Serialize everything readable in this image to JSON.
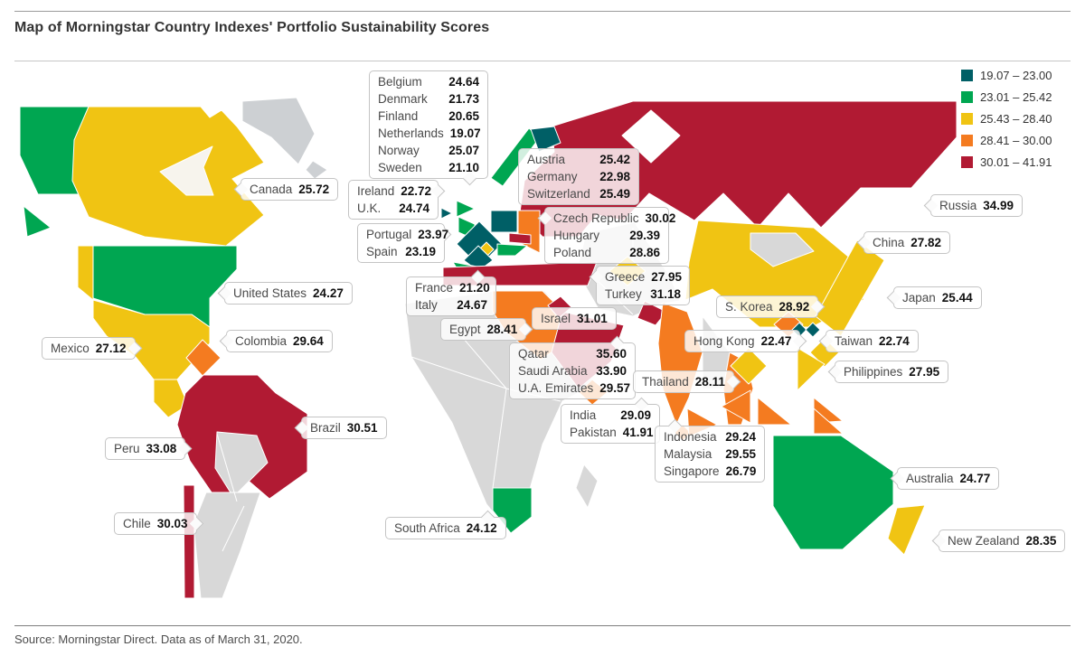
{
  "title": "Map of Morningstar Country Indexes' Portfolio Sustainability Scores",
  "source": "Source: Morningstar Direct. Data as of March 31, 2020.",
  "colors": {
    "teal": "#005F66",
    "green": "#00A651",
    "yellow": "#F0C413",
    "orange": "#F47B20",
    "red": "#B11A33",
    "land": "#D8D8D8",
    "land_light": "#E3E3E3",
    "greenland": "#CDD0D3",
    "cream": "#F7F4ED"
  },
  "legend": [
    {
      "range": "19.07 – 23.00",
      "color": "#005F66"
    },
    {
      "range": "23.01 – 25.42",
      "color": "#00A651"
    },
    {
      "range": "25.43 – 28.40",
      "color": "#F0C413"
    },
    {
      "range": "28.41 – 30.00",
      "color": "#F47B20"
    },
    {
      "range": "30.01 – 41.91",
      "color": "#B11A33"
    }
  ],
  "labels": [
    {
      "id": "nordics",
      "rows": [
        {
          "name": "Belgium",
          "score": "24.64"
        },
        {
          "name": "Denmark",
          "score": "21.73"
        },
        {
          "name": "Finland",
          "score": "20.65"
        },
        {
          "name": "Netherlands",
          "score": "19.07"
        },
        {
          "name": "Norway",
          "score": "25.07"
        },
        {
          "name": "Sweden",
          "score": "21.10"
        }
      ]
    },
    {
      "id": "ireland-uk",
      "rows": [
        {
          "name": "Ireland",
          "score": "22.72"
        },
        {
          "name": "U.K.",
          "score": "24.74"
        }
      ]
    },
    {
      "id": "portugal-spain",
      "rows": [
        {
          "name": "Portugal",
          "score": "23.97"
        },
        {
          "name": "Spain",
          "score": "23.19"
        }
      ]
    },
    {
      "id": "austria-germany-switzerland",
      "rows": [
        {
          "name": "Austria",
          "score": "25.42"
        },
        {
          "name": "Germany",
          "score": "22.98"
        },
        {
          "name": "Switzerland",
          "score": "25.49"
        }
      ]
    },
    {
      "id": "czech-hungary-poland",
      "rows": [
        {
          "name": "Czech Republic",
          "score": "30.02"
        },
        {
          "name": "Hungary",
          "score": "29.39"
        },
        {
          "name": "Poland",
          "score": "28.86"
        }
      ]
    },
    {
      "id": "greece-turkey",
      "rows": [
        {
          "name": "Greece",
          "score": "27.95"
        },
        {
          "name": "Turkey",
          "score": "31.18"
        }
      ]
    },
    {
      "id": "france-italy",
      "rows": [
        {
          "name": "France",
          "score": "21.20"
        },
        {
          "name": "Italy",
          "score": "24.67"
        }
      ]
    },
    {
      "id": "canada",
      "rows": [
        {
          "name": "Canada",
          "score": "25.72"
        }
      ]
    },
    {
      "id": "united-states",
      "rows": [
        {
          "name": "United States",
          "score": "24.27"
        }
      ]
    },
    {
      "id": "mexico",
      "rows": [
        {
          "name": "Mexico",
          "score": "27.12"
        }
      ]
    },
    {
      "id": "colombia",
      "rows": [
        {
          "name": "Colombia",
          "score": "29.64"
        }
      ]
    },
    {
      "id": "peru",
      "rows": [
        {
          "name": "Peru",
          "score": "33.08"
        }
      ]
    },
    {
      "id": "brazil",
      "rows": [
        {
          "name": "Brazil",
          "score": "30.51"
        }
      ]
    },
    {
      "id": "chile",
      "rows": [
        {
          "name": "Chile",
          "score": "30.03"
        }
      ]
    },
    {
      "id": "south-africa",
      "rows": [
        {
          "name": "South Africa",
          "score": "24.12"
        }
      ]
    },
    {
      "id": "egypt",
      "rows": [
        {
          "name": "Egypt",
          "score": "28.41"
        }
      ]
    },
    {
      "id": "israel",
      "rows": [
        {
          "name": "Israel",
          "score": "31.01"
        }
      ]
    },
    {
      "id": "qatar-saudi-uae",
      "rows": [
        {
          "name": "Qatar",
          "score": "35.60"
        },
        {
          "name": "Saudi Arabia",
          "score": "33.90"
        },
        {
          "name": "U.A. Emirates",
          "score": "29.57"
        }
      ]
    },
    {
      "id": "india-pakistan",
      "rows": [
        {
          "name": "India",
          "score": "29.09"
        },
        {
          "name": "Pakistan",
          "score": "41.91"
        }
      ]
    },
    {
      "id": "thailand",
      "rows": [
        {
          "name": "Thailand",
          "score": "28.11"
        }
      ]
    },
    {
      "id": "indonesia-malaysia-singapore",
      "rows": [
        {
          "name": "Indonesia",
          "score": "29.24"
        },
        {
          "name": "Malaysia",
          "score": "29.55"
        },
        {
          "name": "Singapore",
          "score": "26.79"
        }
      ]
    },
    {
      "id": "hong-kong",
      "rows": [
        {
          "name": "Hong Kong",
          "score": "22.47"
        }
      ]
    },
    {
      "id": "s-korea",
      "rows": [
        {
          "name": "S. Korea",
          "score": "28.92"
        }
      ]
    },
    {
      "id": "taiwan",
      "rows": [
        {
          "name": "Taiwan",
          "score": "22.74"
        }
      ]
    },
    {
      "id": "philippines",
      "rows": [
        {
          "name": "Philippines",
          "score": "27.95"
        }
      ]
    },
    {
      "id": "japan",
      "rows": [
        {
          "name": "Japan",
          "score": "25.44"
        }
      ]
    },
    {
      "id": "china",
      "rows": [
        {
          "name": "China",
          "score": "27.82"
        }
      ]
    },
    {
      "id": "russia",
      "rows": [
        {
          "name": "Russia",
          "score": "34.99"
        }
      ]
    },
    {
      "id": "australia",
      "rows": [
        {
          "name": "Australia",
          "score": "24.77"
        }
      ]
    },
    {
      "id": "new-zealand",
      "rows": [
        {
          "name": "New Zealand",
          "score": "28.35"
        }
      ]
    }
  ],
  "chart_data": {
    "type": "heatmap",
    "subtype": "choropleth-world-map",
    "title": "Map of Morningstar Country Indexes' Portfolio Sustainability Scores",
    "source": "Source: Morningstar Direct. Data as of March 31, 2020.",
    "legend_position": "top-right",
    "value_range": [
      19.07,
      41.91
    ],
    "buckets": [
      {
        "min": 19.07,
        "max": 23.0,
        "color": "#005F66"
      },
      {
        "min": 23.01,
        "max": 25.42,
        "color": "#00A651"
      },
      {
        "min": 25.43,
        "max": 28.4,
        "color": "#F0C413"
      },
      {
        "min": 28.41,
        "max": 30.0,
        "color": "#F47B20"
      },
      {
        "min": 30.01,
        "max": 41.91,
        "color": "#B11A33"
      }
    ],
    "countries": [
      {
        "name": "Canada",
        "score": 25.72
      },
      {
        "name": "United States",
        "score": 24.27
      },
      {
        "name": "Mexico",
        "score": 27.12
      },
      {
        "name": "Colombia",
        "score": 29.64
      },
      {
        "name": "Peru",
        "score": 33.08
      },
      {
        "name": "Brazil",
        "score": 30.51
      },
      {
        "name": "Chile",
        "score": 30.03
      },
      {
        "name": "Belgium",
        "score": 24.64
      },
      {
        "name": "Denmark",
        "score": 21.73
      },
      {
        "name": "Finland",
        "score": 20.65
      },
      {
        "name": "Netherlands",
        "score": 19.07
      },
      {
        "name": "Norway",
        "score": 25.07
      },
      {
        "name": "Sweden",
        "score": 21.1
      },
      {
        "name": "Ireland",
        "score": 22.72
      },
      {
        "name": "U.K.",
        "score": 24.74
      },
      {
        "name": "Portugal",
        "score": 23.97
      },
      {
        "name": "Spain",
        "score": 23.19
      },
      {
        "name": "France",
        "score": 21.2
      },
      {
        "name": "Italy",
        "score": 24.67
      },
      {
        "name": "Austria",
        "score": 25.42
      },
      {
        "name": "Germany",
        "score": 22.98
      },
      {
        "name": "Switzerland",
        "score": 25.49
      },
      {
        "name": "Czech Republic",
        "score": 30.02
      },
      {
        "name": "Hungary",
        "score": 29.39
      },
      {
        "name": "Poland",
        "score": 28.86
      },
      {
        "name": "Greece",
        "score": 27.95
      },
      {
        "name": "Turkey",
        "score": 31.18
      },
      {
        "name": "Russia",
        "score": 34.99
      },
      {
        "name": "Egypt",
        "score": 28.41
      },
      {
        "name": "Israel",
        "score": 31.01
      },
      {
        "name": "Qatar",
        "score": 35.6
      },
      {
        "name": "Saudi Arabia",
        "score": 33.9
      },
      {
        "name": "U.A. Emirates",
        "score": 29.57
      },
      {
        "name": "South Africa",
        "score": 24.12
      },
      {
        "name": "India",
        "score": 29.09
      },
      {
        "name": "Pakistan",
        "score": 41.91
      },
      {
        "name": "China",
        "score": 27.82
      },
      {
        "name": "Japan",
        "score": 25.44
      },
      {
        "name": "S. Korea",
        "score": 28.92
      },
      {
        "name": "Hong Kong",
        "score": 22.47
      },
      {
        "name": "Taiwan",
        "score": 22.74
      },
      {
        "name": "Thailand",
        "score": 28.11
      },
      {
        "name": "Philippines",
        "score": 27.95
      },
      {
        "name": "Indonesia",
        "score": 29.24
      },
      {
        "name": "Malaysia",
        "score": 29.55
      },
      {
        "name": "Singapore",
        "score": 26.79
      },
      {
        "name": "Australia",
        "score": 24.77
      },
      {
        "name": "New Zealand",
        "score": 28.35
      }
    ]
  }
}
